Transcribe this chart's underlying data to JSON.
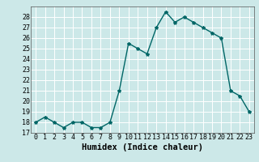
{
  "x": [
    0,
    1,
    2,
    3,
    4,
    5,
    6,
    7,
    8,
    9,
    10,
    11,
    12,
    13,
    14,
    15,
    16,
    17,
    18,
    19,
    20,
    21,
    22,
    23
  ],
  "y": [
    18,
    18.5,
    18,
    17.5,
    18,
    18,
    17.5,
    17.5,
    18,
    21,
    25.5,
    25,
    24.5,
    27,
    28.5,
    27.5,
    28,
    27.5,
    27,
    26.5,
    26,
    21,
    20.5,
    19
  ],
  "line_color": "#006666",
  "marker": "*",
  "marker_size": 3,
  "xlabel": "Humidex (Indice chaleur)",
  "xlim": [
    -0.5,
    23.5
  ],
  "ylim": [
    17,
    29
  ],
  "yticks": [
    17,
    18,
    19,
    20,
    21,
    22,
    23,
    24,
    25,
    26,
    27,
    28
  ],
  "xticks": [
    0,
    1,
    2,
    3,
    4,
    5,
    6,
    7,
    8,
    9,
    10,
    11,
    12,
    13,
    14,
    15,
    16,
    17,
    18,
    19,
    20,
    21,
    22,
    23
  ],
  "bg_color": "#cce8e8",
  "grid_color": "#ffffff",
  "tick_fontsize": 6,
  "xlabel_fontsize": 7.5,
  "line_width": 1.0
}
